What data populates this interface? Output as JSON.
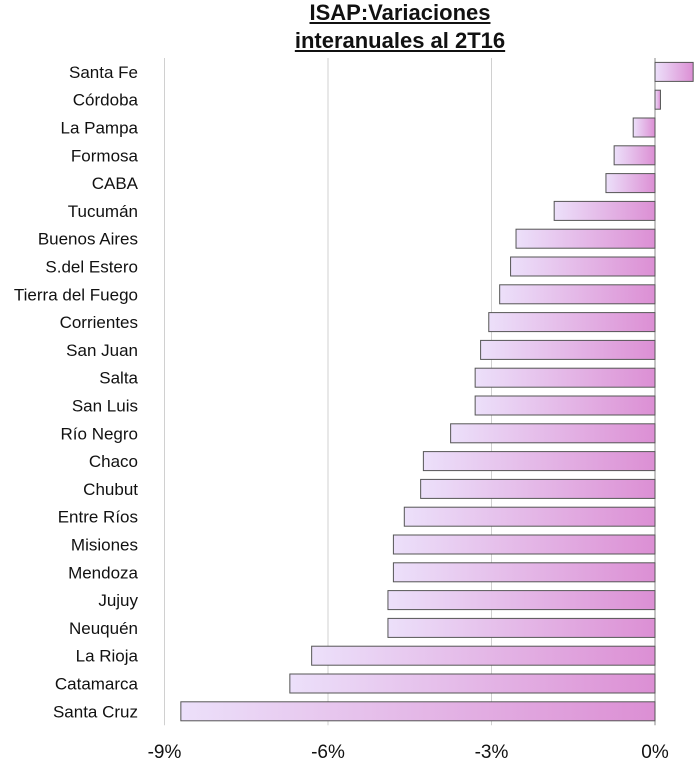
{
  "chart_data": {
    "type": "bar",
    "orientation": "horizontal",
    "title_line1": "ISAP:Variaciones",
    "title_line2": "interanuales al 2T16",
    "categories": [
      "Santa Fe",
      "Córdoba",
      "La Pampa",
      "Formosa",
      "CABA",
      "Tucumán",
      "Buenos Aires",
      "S.del Estero",
      "Tierra del Fuego",
      "Corrientes",
      "San Juan",
      "Salta",
      "San Luis",
      "Río Negro",
      "Chaco",
      "Chubut",
      "Entre Ríos",
      "Misiones",
      "Mendoza",
      "Jujuy",
      "Neuquén",
      "La Rioja",
      "Catamarca",
      "Santa Cruz"
    ],
    "values": [
      0.7,
      0.1,
      -0.4,
      -0.75,
      -0.9,
      -1.85,
      -2.55,
      -2.65,
      -2.85,
      -3.05,
      -3.2,
      -3.3,
      -3.3,
      -3.75,
      -4.25,
      -4.3,
      -4.6,
      -4.8,
      -4.8,
      -4.9,
      -4.9,
      -6.3,
      -6.7,
      -8.7
    ],
    "xlim": [
      -9,
      0.75
    ],
    "ticks": [
      -9,
      -6,
      -3,
      0
    ],
    "tick_labels": [
      "-9%",
      "-6%",
      "-3%",
      "0%"
    ],
    "grid": "vertical",
    "colors": {
      "bar_light": "#ece0fa",
      "bar_dark": "#dc8fd4",
      "bar_edge": "#555555",
      "grid": "#d0d0d0"
    }
  }
}
